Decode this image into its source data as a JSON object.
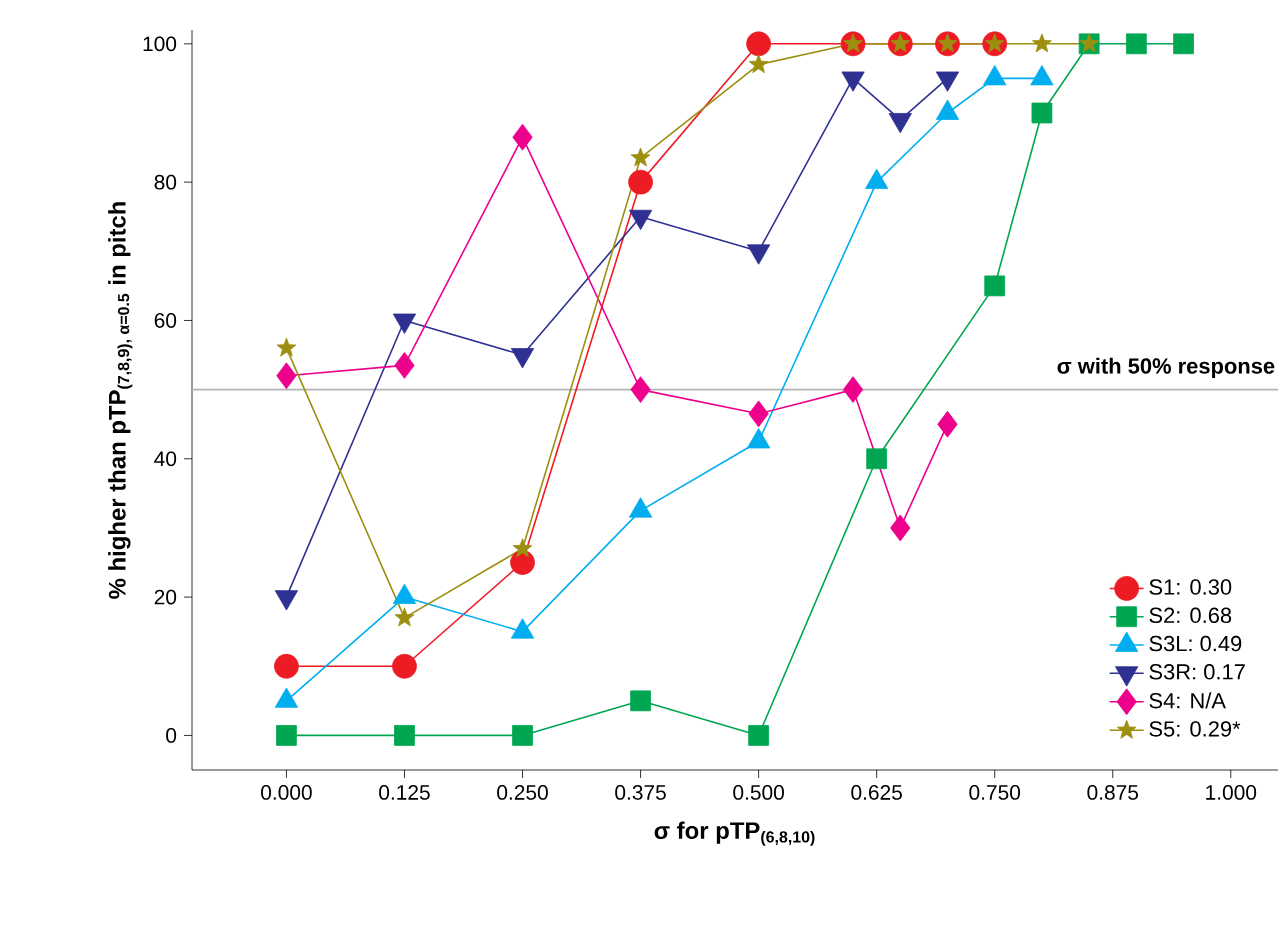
{
  "chart_data": {
    "type": "line",
    "xlabel": "σ for pTP$_{(6,8,10)}$",
    "ylabel": "% higher than pTP$_{(7,8,9), α=0.5}$ in pitch",
    "xlim": [
      -0.1,
      1.05
    ],
    "ylim": [
      -5,
      102
    ],
    "xticks": [
      {
        "value": 0,
        "label": "0.000"
      },
      {
        "value": 0.125,
        "label": "0.125"
      },
      {
        "value": 0.25,
        "label": "0.250"
      },
      {
        "value": 0.375,
        "label": "0.375"
      },
      {
        "value": 0.5,
        "label": "0.500"
      },
      {
        "value": 0.625,
        "label": "0.625"
      },
      {
        "value": 0.75,
        "label": "0.750"
      },
      {
        "value": 0.875,
        "label": "0.875"
      },
      {
        "value": 1,
        "label": "1.000"
      }
    ],
    "yticks": [
      0,
      20,
      40,
      60,
      80,
      100
    ],
    "grid": false,
    "legend": "bottom right",
    "ref_lines": [
      {
        "axis": "y",
        "value": 50,
        "label": "σ with 50% response",
        "color": "#b4b4b4"
      }
    ],
    "series": [
      {
        "name": "S1:   0.30",
        "color": "#ed1c24",
        "marker": "circle",
        "x": [
          0,
          0.125,
          0.25,
          0.375,
          0.5,
          0.6,
          0.65,
          0.7,
          0.75
        ],
        "values": [
          10,
          10,
          25,
          80,
          100,
          100,
          100,
          100,
          100
        ]
      },
      {
        "name": "S2:   0.68",
        "color": "#00a651",
        "marker": "square",
        "x": [
          0,
          0.125,
          0.25,
          0.375,
          0.5,
          0.625,
          0.75,
          0.8,
          0.85,
          0.9,
          0.95
        ],
        "values": [
          0,
          0,
          0,
          5,
          0,
          40,
          65,
          90,
          100,
          100,
          100
        ]
      },
      {
        "name": "S3L: 0.49",
        "color": "#00aeef",
        "marker": "triangle",
        "x": [
          0,
          0.125,
          0.25,
          0.375,
          0.5,
          0.625,
          0.7,
          0.75,
          0.8
        ],
        "values": [
          5,
          20,
          15,
          32.5,
          42.5,
          80,
          90,
          95,
          95
        ]
      },
      {
        "name": "S3R: 0.17",
        "color": "#2e3192",
        "marker": "triangle-down",
        "x": [
          0,
          0.125,
          0.25,
          0.375,
          0.5,
          0.6,
          0.65,
          0.7
        ],
        "values": [
          20,
          60,
          55,
          75,
          70,
          95,
          89,
          95
        ]
      },
      {
        "name": "S4:   N/A",
        "color": "#ec008c",
        "marker": "diamond",
        "x": [
          0,
          0.125,
          0.25,
          0.375,
          0.5,
          0.6,
          0.65,
          0.7
        ],
        "values": [
          52,
          53.5,
          86.5,
          50,
          46.5,
          50,
          30,
          45
        ]
      },
      {
        "name": "S5:   0.29*",
        "color": "#9c8f0f",
        "marker": "star",
        "x": [
          0,
          0.125,
          0.25,
          0.375,
          0.5,
          0.6,
          0.65,
          0.7,
          0.75,
          0.8,
          0.85
        ],
        "values": [
          56,
          17,
          27,
          83.5,
          97,
          100,
          100,
          100,
          100,
          100,
          100
        ]
      }
    ]
  }
}
